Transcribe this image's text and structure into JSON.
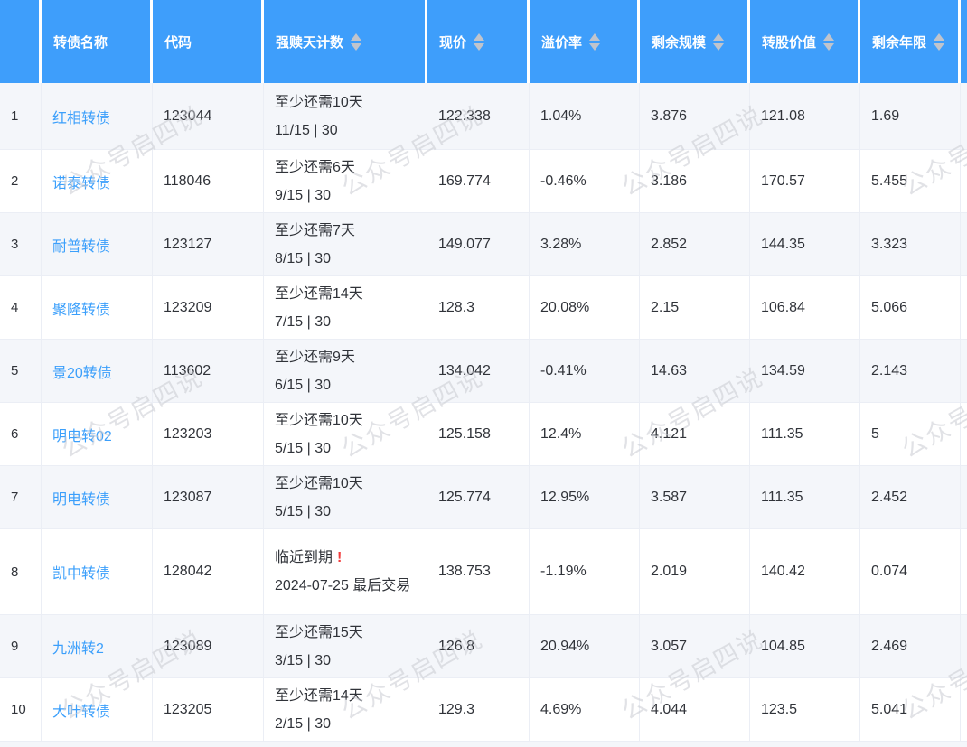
{
  "watermark": {
    "text": "公众号启四说"
  },
  "colors": {
    "header_bg": "#3e9efb",
    "link_blue": "#3b9ffb",
    "alert_red": "#f23c3c",
    "stripe_row": "#f4f6fa",
    "cell_border": "#ebeef5",
    "sort_caret": "#c0c4cc",
    "body_text": "#303339"
  },
  "table": {
    "columns": [
      {
        "label": "",
        "sortable": false
      },
      {
        "label": "转债名称",
        "sortable": false
      },
      {
        "label": "代码",
        "sortable": false
      },
      {
        "label": "强赎天计数",
        "sortable": true
      },
      {
        "label": "现价",
        "sortable": true
      },
      {
        "label": "溢价率",
        "sortable": true
      },
      {
        "label": "剩余规模",
        "sortable": true
      },
      {
        "label": "转股价值",
        "sortable": true
      },
      {
        "label": "剩余年限",
        "sortable": true
      }
    ],
    "rows": [
      {
        "num": "1",
        "name": "红相转债",
        "code": "123044",
        "redeem_line1": "至少还需10天",
        "alert_mark": "",
        "redeem_line2": "11/15 | 30",
        "price": "122.338",
        "premium": "1.04%",
        "remaining_size": "3.876",
        "conversion_value": "121.08",
        "remaining_years": "1.69"
      },
      {
        "num": "2",
        "name": "诺泰转债",
        "code": "118046",
        "redeem_line1": "至少还需6天",
        "alert_mark": "",
        "redeem_line2": "9/15 | 30",
        "price": "169.774",
        "premium": "-0.46%",
        "remaining_size": "3.186",
        "conversion_value": "170.57",
        "remaining_years": "5.455"
      },
      {
        "num": "3",
        "name": "耐普转债",
        "code": "123127",
        "redeem_line1": "至少还需7天",
        "alert_mark": "",
        "redeem_line2": "8/15 | 30",
        "price": "149.077",
        "premium": "3.28%",
        "remaining_size": "2.852",
        "conversion_value": "144.35",
        "remaining_years": "3.323"
      },
      {
        "num": "4",
        "name": "聚隆转债",
        "code": "123209",
        "redeem_line1": "至少还需14天",
        "alert_mark": "",
        "redeem_line2": "7/15 | 30",
        "price": "128.3",
        "premium": "20.08%",
        "remaining_size": "2.15",
        "conversion_value": "106.84",
        "remaining_years": "5.066"
      },
      {
        "num": "5",
        "name": "景20转债",
        "code": "113602",
        "redeem_line1": "至少还需9天",
        "alert_mark": "",
        "redeem_line2": "6/15 | 30",
        "price": "134.042",
        "premium": "-0.41%",
        "remaining_size": "14.63",
        "conversion_value": "134.59",
        "remaining_years": "2.143"
      },
      {
        "num": "6",
        "name": "明电转02",
        "code": "123203",
        "redeem_line1": "至少还需10天",
        "alert_mark": "",
        "redeem_line2": "5/15 | 30",
        "price": "125.158",
        "premium": "12.4%",
        "remaining_size": "4.121",
        "conversion_value": "111.35",
        "remaining_years": "5"
      },
      {
        "num": "7",
        "name": "明电转债",
        "code": "123087",
        "redeem_line1": "至少还需10天",
        "alert_mark": "",
        "redeem_line2": "5/15 | 30",
        "price": "125.774",
        "premium": "12.95%",
        "remaining_size": "3.587",
        "conversion_value": "111.35",
        "remaining_years": "2.452"
      },
      {
        "num": "8",
        "name": "凯中转债",
        "code": "128042",
        "redeem_line1": "临近到期",
        "alert_mark": "!",
        "redeem_line2": "2024-07-25 最后交易",
        "price": "138.753",
        "premium": "-1.19%",
        "remaining_size": "2.019",
        "conversion_value": "140.42",
        "remaining_years": "0.074"
      },
      {
        "num": "9",
        "name": "九洲转2",
        "code": "123089",
        "redeem_line1": "至少还需15天",
        "alert_mark": "",
        "redeem_line2": "3/15 | 30",
        "price": "126.8",
        "premium": "20.94%",
        "remaining_size": "3.057",
        "conversion_value": "104.85",
        "remaining_years": "2.469"
      },
      {
        "num": "10",
        "name": "大叶转债",
        "code": "123205",
        "redeem_line1": "至少还需14天",
        "alert_mark": "",
        "redeem_line2": "2/15 | 30",
        "price": "129.3",
        "premium": "4.69%",
        "remaining_size": "4.044",
        "conversion_value": "123.5",
        "remaining_years": "5.041"
      }
    ]
  }
}
